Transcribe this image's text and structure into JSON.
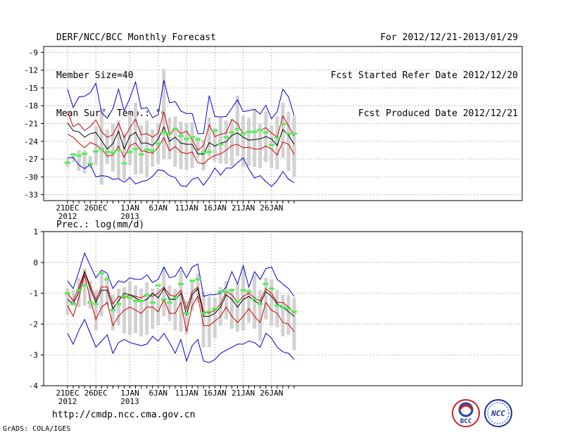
{
  "header": {
    "title": "DERF/NCC/BCC Monthly Forecast",
    "member_size": "Member Size=40",
    "variable": "Mean Surf. Temp.: °C",
    "forecast_period": "For 2012/12/21-2013/01/29",
    "started_refer": "Fcst Started Refer Date 2012/12/20",
    "produced": "Fcst Produced Date 2012/12/21"
  },
  "footer": {
    "url": "http://cmdp.ncc.cma.gov.cn",
    "grads": "GrADS: COLA/IGES",
    "logo_bcc": "BCC",
    "logo_ncc": "NCC"
  },
  "colors": {
    "spread": "#0000cc",
    "std": "#cc0000",
    "mean": "#000000",
    "obs": "#55ee55",
    "box": "#d2d2d2",
    "grid": "#888888"
  },
  "chart_data": [
    {
      "type": "line",
      "title": "Mean Surf. Temp.: °C",
      "ylim": [
        -34,
        -8
      ],
      "yticks": [
        -9,
        -12,
        -15,
        -18,
        -21,
        -24,
        -27,
        -30,
        -33
      ],
      "xticks": [
        {
          "day": 0,
          "label": "21DEC",
          "sub": "2012"
        },
        {
          "day": 5,
          "label": "26DEC",
          "sub": ""
        },
        {
          "day": 11,
          "label": "1JAN",
          "sub": "2013"
        },
        {
          "day": 16,
          "label": "6JAN",
          "sub": ""
        },
        {
          "day": 21,
          "label": "11JAN",
          "sub": ""
        },
        {
          "day": 26,
          "label": "16JAN",
          "sub": ""
        },
        {
          "day": 31,
          "label": "21JAN",
          "sub": ""
        },
        {
          "day": 36,
          "label": "26JAN",
          "sub": ""
        }
      ],
      "series": [
        {
          "name": "max",
          "values": [
            -15.2,
            -18.3,
            -16.5,
            -16.4,
            -15.8,
            -14.2,
            -19.2,
            -20.1,
            -18.5,
            -15.2,
            -18.9,
            -16.7,
            -14,
            -18.5,
            -18.3,
            -20,
            -19.5,
            -13.7,
            -17.5,
            -17.3,
            -18.9,
            -19.3,
            -19.3,
            -22.7,
            -22.7,
            -16.3,
            -19.8,
            -19.9,
            -19.8,
            -18.4,
            -17,
            -19,
            -18.8,
            -18.6,
            -19.4,
            -17.9,
            -20.2,
            -19,
            -15.2,
            -16.5,
            -19.7
          ]
        },
        {
          "name": "plus_std",
          "values": [
            -19,
            -21.5,
            -21,
            -22.2,
            -21.5,
            -20.4,
            -22.4,
            -23.3,
            -22.9,
            -20.9,
            -23.4,
            -21.7,
            -20.3,
            -22.9,
            -22.7,
            -23.3,
            -22.6,
            -19,
            -22.9,
            -21.8,
            -22.7,
            -22.3,
            -23.7,
            -25.5,
            -24.7,
            -21.2,
            -23.2,
            -22.8,
            -22.6,
            -20.3,
            -21,
            -22.8,
            -22.3,
            -22.4,
            -22.1,
            -21.7,
            -22.6,
            -23.3,
            -19.7,
            -21.4,
            -23.1
          ]
        },
        {
          "name": "mean",
          "values": [
            -20.9,
            -22.2,
            -22.4,
            -23.3,
            -22.7,
            -22.5,
            -23.9,
            -25.3,
            -24.4,
            -22.3,
            -25.3,
            -23.1,
            -22.5,
            -24.3,
            -24.3,
            -24.7,
            -23.6,
            -21.6,
            -24,
            -23.3,
            -24.3,
            -24.5,
            -24.5,
            -26.1,
            -26.2,
            -24.2,
            -24.8,
            -24.3,
            -24.1,
            -23,
            -22.6,
            -23.3,
            -23.8,
            -23.7,
            -23.6,
            -23.2,
            -23.6,
            -24.7,
            -22,
            -23,
            -24.5
          ]
        },
        {
          "name": "minus_std",
          "values": [
            -22.8,
            -23.3,
            -24.3,
            -25.1,
            -24.2,
            -24.6,
            -25.3,
            -26.5,
            -26.3,
            -24.8,
            -26.7,
            -24.7,
            -24.3,
            -25.6,
            -25.8,
            -26,
            -25,
            -23.4,
            -25.6,
            -24.9,
            -25.8,
            -26.1,
            -25.8,
            -27.6,
            -27.8,
            -26.9,
            -26.4,
            -26.1,
            -25.5,
            -24.7,
            -24.5,
            -25.1,
            -25,
            -25.3,
            -25.3,
            -24.8,
            -25.3,
            -26.3,
            -24.1,
            -24.5,
            -26.2
          ]
        },
        {
          "name": "min",
          "values": [
            -26.8,
            -26.7,
            -28,
            -28.6,
            -27.9,
            -30,
            -29.8,
            -29.9,
            -30.4,
            -30.3,
            -30.9,
            -30.1,
            -31.2,
            -30.8,
            -30.6,
            -29.9,
            -28.8,
            -29,
            -29.8,
            -30.1,
            -31.5,
            -31.6,
            -30.4,
            -30.1,
            -31.4,
            -30.1,
            -28.5,
            -29.7,
            -28.5,
            -28.5,
            -27.6,
            -26.8,
            -28.7,
            -30.2,
            -29.8,
            -30.8,
            -31.6,
            -30.6,
            -29.1,
            -30.4,
            -31
          ]
        },
        {
          "name": "obs",
          "values": [
            -27.6,
            -26.2,
            -26.4,
            -26.1,
            -27.8,
            -25.7,
            -25.3,
            -25.8,
            -25.9,
            -25.5,
            -27.7,
            -25.8,
            -25.3,
            -26.2,
            -25.4,
            -25.6,
            -24.4,
            -22.5,
            -22.7,
            -21.9,
            -23.1,
            -23.6,
            -23.3,
            -23.7,
            -25.9,
            -25.8,
            -22.2,
            -24.5,
            -23.3,
            -22.5,
            -21.9,
            -22.7,
            -22.4,
            -22.4,
            -22.1,
            -22.5,
            -24.6,
            -23.4,
            -21.1,
            -22.7,
            -22.7
          ]
        },
        {
          "name": "box_top",
          "values": [
            -26.8,
            -26,
            -25.5,
            -25.5,
            -26.5,
            -21.5,
            -18.4,
            -22,
            -21,
            -20.5,
            -22.7,
            -19.5,
            -17.5,
            -21.3,
            -20.5,
            -22,
            -21,
            -11.8,
            -20,
            -19.8,
            -20.7,
            -21,
            -20.8,
            -23.2,
            -23.7,
            -20,
            -21.7,
            -20,
            -20.5,
            -20.3,
            -16.3,
            -19.7,
            -20,
            -18.5,
            -21,
            -19,
            -21.3,
            -19.8,
            -17.5,
            -19,
            -19.8
          ]
        },
        {
          "name": "box_bot",
          "values": [
            -28.3,
            -27.5,
            -29,
            -29.4,
            -28.5,
            -28,
            -31.3,
            -27.8,
            -29.1,
            -30.2,
            -30.5,
            -28,
            -29.6,
            -29.5,
            -30.1,
            -28.3,
            -27.8,
            -27,
            -27,
            -28.3,
            -28.7,
            -28.8,
            -28.5,
            -26.8,
            -28.9,
            -26.6,
            -27.4,
            -27.7,
            -27.8,
            -28.2,
            -26.5,
            -28.3,
            -28.1,
            -28.3,
            -28.5,
            -27.5,
            -28.5,
            -28.7,
            -26.8,
            -29,
            -30
          ]
        }
      ]
    },
    {
      "type": "line",
      "title": "Prec.: log(mm/d)",
      "ylim": [
        -4,
        1
      ],
      "yticks": [
        1,
        0,
        -1,
        -2,
        -3,
        -4
      ],
      "xticks": [
        {
          "day": 0,
          "label": "21DEC",
          "sub": "2012"
        },
        {
          "day": 5,
          "label": "26DEC",
          "sub": ""
        },
        {
          "day": 11,
          "label": "1JAN",
          "sub": "2013"
        },
        {
          "day": 16,
          "label": "6JAN",
          "sub": ""
        },
        {
          "day": 21,
          "label": "11JAN",
          "sub": ""
        },
        {
          "day": 26,
          "label": "16JAN",
          "sub": ""
        },
        {
          "day": 31,
          "label": "21JAN",
          "sub": ""
        },
        {
          "day": 36,
          "label": "26JAN",
          "sub": ""
        }
      ],
      "series": [
        {
          "name": "max",
          "values": [
            -0.6,
            -0.85,
            -0.3,
            0.3,
            -0.1,
            -0.5,
            -0.25,
            -0.35,
            -0.85,
            -0.6,
            -0.65,
            -0.5,
            -0.55,
            -0.55,
            -0.4,
            -0.65,
            -0.55,
            -0.15,
            -0.5,
            -0.45,
            -0.15,
            -0.5,
            -0.15,
            -0.05,
            -1.1,
            -1.05,
            -1.05,
            -1,
            -0.8,
            -0.3,
            -0.7,
            -0.1,
            -0.8,
            -0.3,
            -0.55,
            -0.2,
            -0.15,
            -0.55,
            -0.7,
            -0.85,
            -1.1
          ]
        },
        {
          "name": "plus_std",
          "values": [
            -1,
            -1.25,
            -0.8,
            -0.3,
            -0.75,
            -1.2,
            -0.8,
            -0.8,
            -1.35,
            -1.1,
            -1.15,
            -1.05,
            -1.1,
            -1.15,
            -1.05,
            -1.1,
            -1,
            -0.8,
            -1.05,
            -1.1,
            -0.9,
            -1.5,
            -0.95,
            -0.8,
            -1.6,
            -1.65,
            -1.55,
            -1.35,
            -0.95,
            -1.05,
            -1.3,
            -1.1,
            -1,
            -1.15,
            -1.25,
            -0.85,
            -1,
            -1.3,
            -1.3,
            -1.45,
            -1.65
          ]
        },
        {
          "name": "mean",
          "values": [
            -1.2,
            -1.35,
            -0.95,
            -0.3,
            -0.85,
            -1.3,
            -0.9,
            -0.9,
            -1.5,
            -1.25,
            -1,
            -1.05,
            -1.15,
            -1.25,
            -1.2,
            -1,
            -1.15,
            -0.85,
            -1.2,
            -1.2,
            -1,
            -1.7,
            -1.05,
            -0.85,
            -1.75,
            -1.75,
            -1.65,
            -1.45,
            -1.05,
            -1.2,
            -1.45,
            -1.2,
            -1.1,
            -1.25,
            -1.35,
            -0.95,
            -1.1,
            -1.35,
            -1.45,
            -1.6,
            -1.75
          ]
        },
        {
          "name": "minus_std",
          "values": [
            -1.4,
            -1.75,
            -1.15,
            -0.4,
            -1.2,
            -1.85,
            -1.45,
            -1.3,
            -2.05,
            -1.75,
            -1.55,
            -1.45,
            -1.55,
            -1.65,
            -1.45,
            -1.45,
            -1.6,
            -1.2,
            -1.65,
            -1.65,
            -1.3,
            -2.25,
            -1.4,
            -1.1,
            -2.05,
            -2.05,
            -1.9,
            -1.75,
            -1.45,
            -1.75,
            -1.95,
            -1.75,
            -1.5,
            -1.75,
            -1.95,
            -1.3,
            -1.55,
            -1.65,
            -1.95,
            -2,
            -2.25
          ]
        },
        {
          "name": "min",
          "values": [
            -2.3,
            -2.65,
            -2.2,
            -1.85,
            -2.3,
            -2.75,
            -2.55,
            -2.35,
            -2.95,
            -2.6,
            -2.5,
            -2.6,
            -2.65,
            -2.7,
            -2.65,
            -2.4,
            -2.55,
            -2.3,
            -2.6,
            -2.95,
            -2.5,
            -3.2,
            -2.7,
            -2.5,
            -3.2,
            -3.25,
            -3.15,
            -2.95,
            -2.85,
            -2.75,
            -2.65,
            -2.65,
            -2.55,
            -2.6,
            -2.75,
            -2.3,
            -2.45,
            -2.75,
            -2.9,
            -2.95,
            -3.15
          ]
        },
        {
          "name": "obs",
          "values": [
            -1,
            -1.35,
            -0.9,
            -0.75,
            -1.3,
            -1.35,
            -0.35,
            -0.55,
            -1.55,
            -1.35,
            -1.1,
            -1.15,
            -1.25,
            -1.25,
            -1.05,
            -1.3,
            -0.75,
            -1.2,
            -1.3,
            -1.15,
            -0.7,
            -1.65,
            -0.6,
            -0.55,
            -1.65,
            -1.6,
            -1.5,
            -0.95,
            -0.95,
            -0.9,
            -1.25,
            -0.9,
            -0.95,
            -1.2,
            -1.35,
            -0.7,
            -0.85,
            -1.4,
            -1.45,
            -1.5,
            -1.6
          ]
        },
        {
          "name": "box_top",
          "values": [
            -0.85,
            -0.9,
            -0.5,
            -0.2,
            -0.6,
            -0.9,
            -0.35,
            -0.45,
            -1.05,
            -0.85,
            -0.8,
            -0.6,
            -0.75,
            -0.85,
            -0.65,
            -0.85,
            -0.85,
            -0.15,
            -0.75,
            -0.85,
            -0.25,
            -1.25,
            -0.55,
            -0.35,
            -0.95,
            -1.1,
            -1.15,
            -0.8,
            -0.6,
            -0.85,
            -0.7,
            -0.2,
            -0.85,
            -0.4,
            -0.9,
            -0.5,
            -0.55,
            -0.9,
            -1.05,
            -1.05,
            -1.15
          ]
        },
        {
          "name": "box_bot",
          "values": [
            -1.7,
            -1.4,
            -1.45,
            -1.4,
            -1.5,
            -2.2,
            -1.75,
            -1.4,
            -2.2,
            -2.05,
            -2.3,
            -2.35,
            -2.3,
            -2.4,
            -2.35,
            -2.15,
            -2.05,
            -1.75,
            -1.9,
            -2.2,
            -2.25,
            -2.35,
            -1.55,
            -1.3,
            -2.75,
            -2.75,
            -2.45,
            -2.05,
            -1.85,
            -2.15,
            -2.25,
            -2.2,
            -1.95,
            -2.15,
            -2.55,
            -1.85,
            -2.05,
            -2.1,
            -2.4,
            -2.35,
            -2.85
          ]
        }
      ]
    }
  ]
}
